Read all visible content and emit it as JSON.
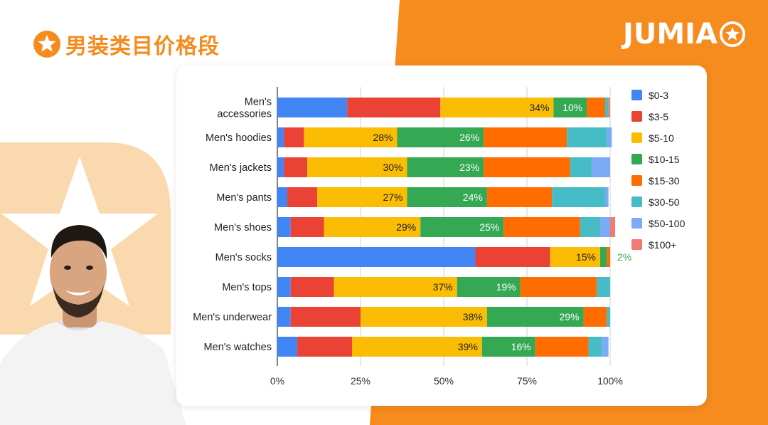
{
  "page": {
    "title": "男装类目价格段",
    "brand": "JUMIA",
    "colors": {
      "accent": "#F68B1E",
      "card": "#FFFFFF"
    }
  },
  "chart_data": {
    "type": "bar",
    "orientation": "horizontal",
    "stacked": true,
    "normalized": true,
    "title": "",
    "xlabel": "",
    "ylabel": "",
    "xlim": [
      0,
      100
    ],
    "x_ticks": [
      "0%",
      "25%",
      "50%",
      "75%",
      "100%"
    ],
    "categories": [
      "Men's accessories",
      "Men's hoodies",
      "Men's jackets",
      "Men's pants",
      "Men's shoes",
      "Men's socks",
      "Men's tops",
      "Men's underwear",
      "Men's watches"
    ],
    "category_lines": [
      [
        "Men's",
        "accessories"
      ],
      [
        "Men's hoodies"
      ],
      [
        "Men's jackets"
      ],
      [
        "Men's pants"
      ],
      [
        "Men's shoes"
      ],
      [
        "Men's socks"
      ],
      [
        "Men's tops"
      ],
      [
        "Men's underwear"
      ],
      [
        "Men's watches"
      ]
    ],
    "series": [
      {
        "name": "$0-3",
        "color": "#4285F4",
        "values": [
          21,
          2,
          2,
          3,
          4,
          59.5,
          4,
          4,
          6
        ]
      },
      {
        "name": "$3-5",
        "color": "#EA4335",
        "values": [
          28,
          6,
          7,
          9,
          10,
          22.5,
          13,
          21,
          16.5
        ]
      },
      {
        "name": "$5-10",
        "color": "#FBBC04",
        "values": [
          34,
          28,
          30,
          27,
          29,
          15,
          37,
          38,
          39
        ]
      },
      {
        "name": "$10-15",
        "color": "#34A853",
        "values": [
          10,
          26,
          23,
          24,
          25,
          2,
          19,
          29,
          16
        ]
      },
      {
        "name": "$15-30",
        "color": "#FF6D01",
        "values": [
          5.5,
          25,
          26,
          19.5,
          23,
          1,
          23,
          7,
          16
        ]
      },
      {
        "name": "$30-50",
        "color": "#46BDC6",
        "values": [
          1,
          12,
          6.5,
          16,
          6,
          0,
          4,
          1,
          4
        ]
      },
      {
        "name": "$50-100",
        "color": "#7BAAF7",
        "values": [
          0,
          1.5,
          5.5,
          1,
          3,
          0,
          0,
          0,
          2
        ]
      },
      {
        "name": "$100+",
        "color": "#F07B72",
        "values": [
          0.5,
          0,
          0,
          0,
          1.5,
          0,
          0,
          0,
          0
        ]
      }
    ],
    "data_labels": [
      {
        "category": 0,
        "series": 2,
        "text": "34%"
      },
      {
        "category": 0,
        "series": 3,
        "text": "10%"
      },
      {
        "category": 1,
        "series": 2,
        "text": "28%"
      },
      {
        "category": 1,
        "series": 3,
        "text": "26%"
      },
      {
        "category": 2,
        "series": 2,
        "text": "30%"
      },
      {
        "category": 2,
        "series": 3,
        "text": "23%"
      },
      {
        "category": 3,
        "series": 2,
        "text": "27%"
      },
      {
        "category": 3,
        "series": 3,
        "text": "24%"
      },
      {
        "category": 4,
        "series": 2,
        "text": "29%"
      },
      {
        "category": 4,
        "series": 3,
        "text": "25%"
      },
      {
        "category": 5,
        "series": 2,
        "text": "15%"
      },
      {
        "category": 5,
        "series": 3,
        "text": "2%",
        "outside": true
      },
      {
        "category": 6,
        "series": 2,
        "text": "37%"
      },
      {
        "category": 6,
        "series": 3,
        "text": "19%"
      },
      {
        "category": 7,
        "series": 2,
        "text": "38%"
      },
      {
        "category": 7,
        "series": 3,
        "text": "29%"
      },
      {
        "category": 8,
        "series": 2,
        "text": "39%"
      },
      {
        "category": 8,
        "series": 3,
        "text": "16%"
      }
    ],
    "legend_position": "right",
    "grid": true
  }
}
